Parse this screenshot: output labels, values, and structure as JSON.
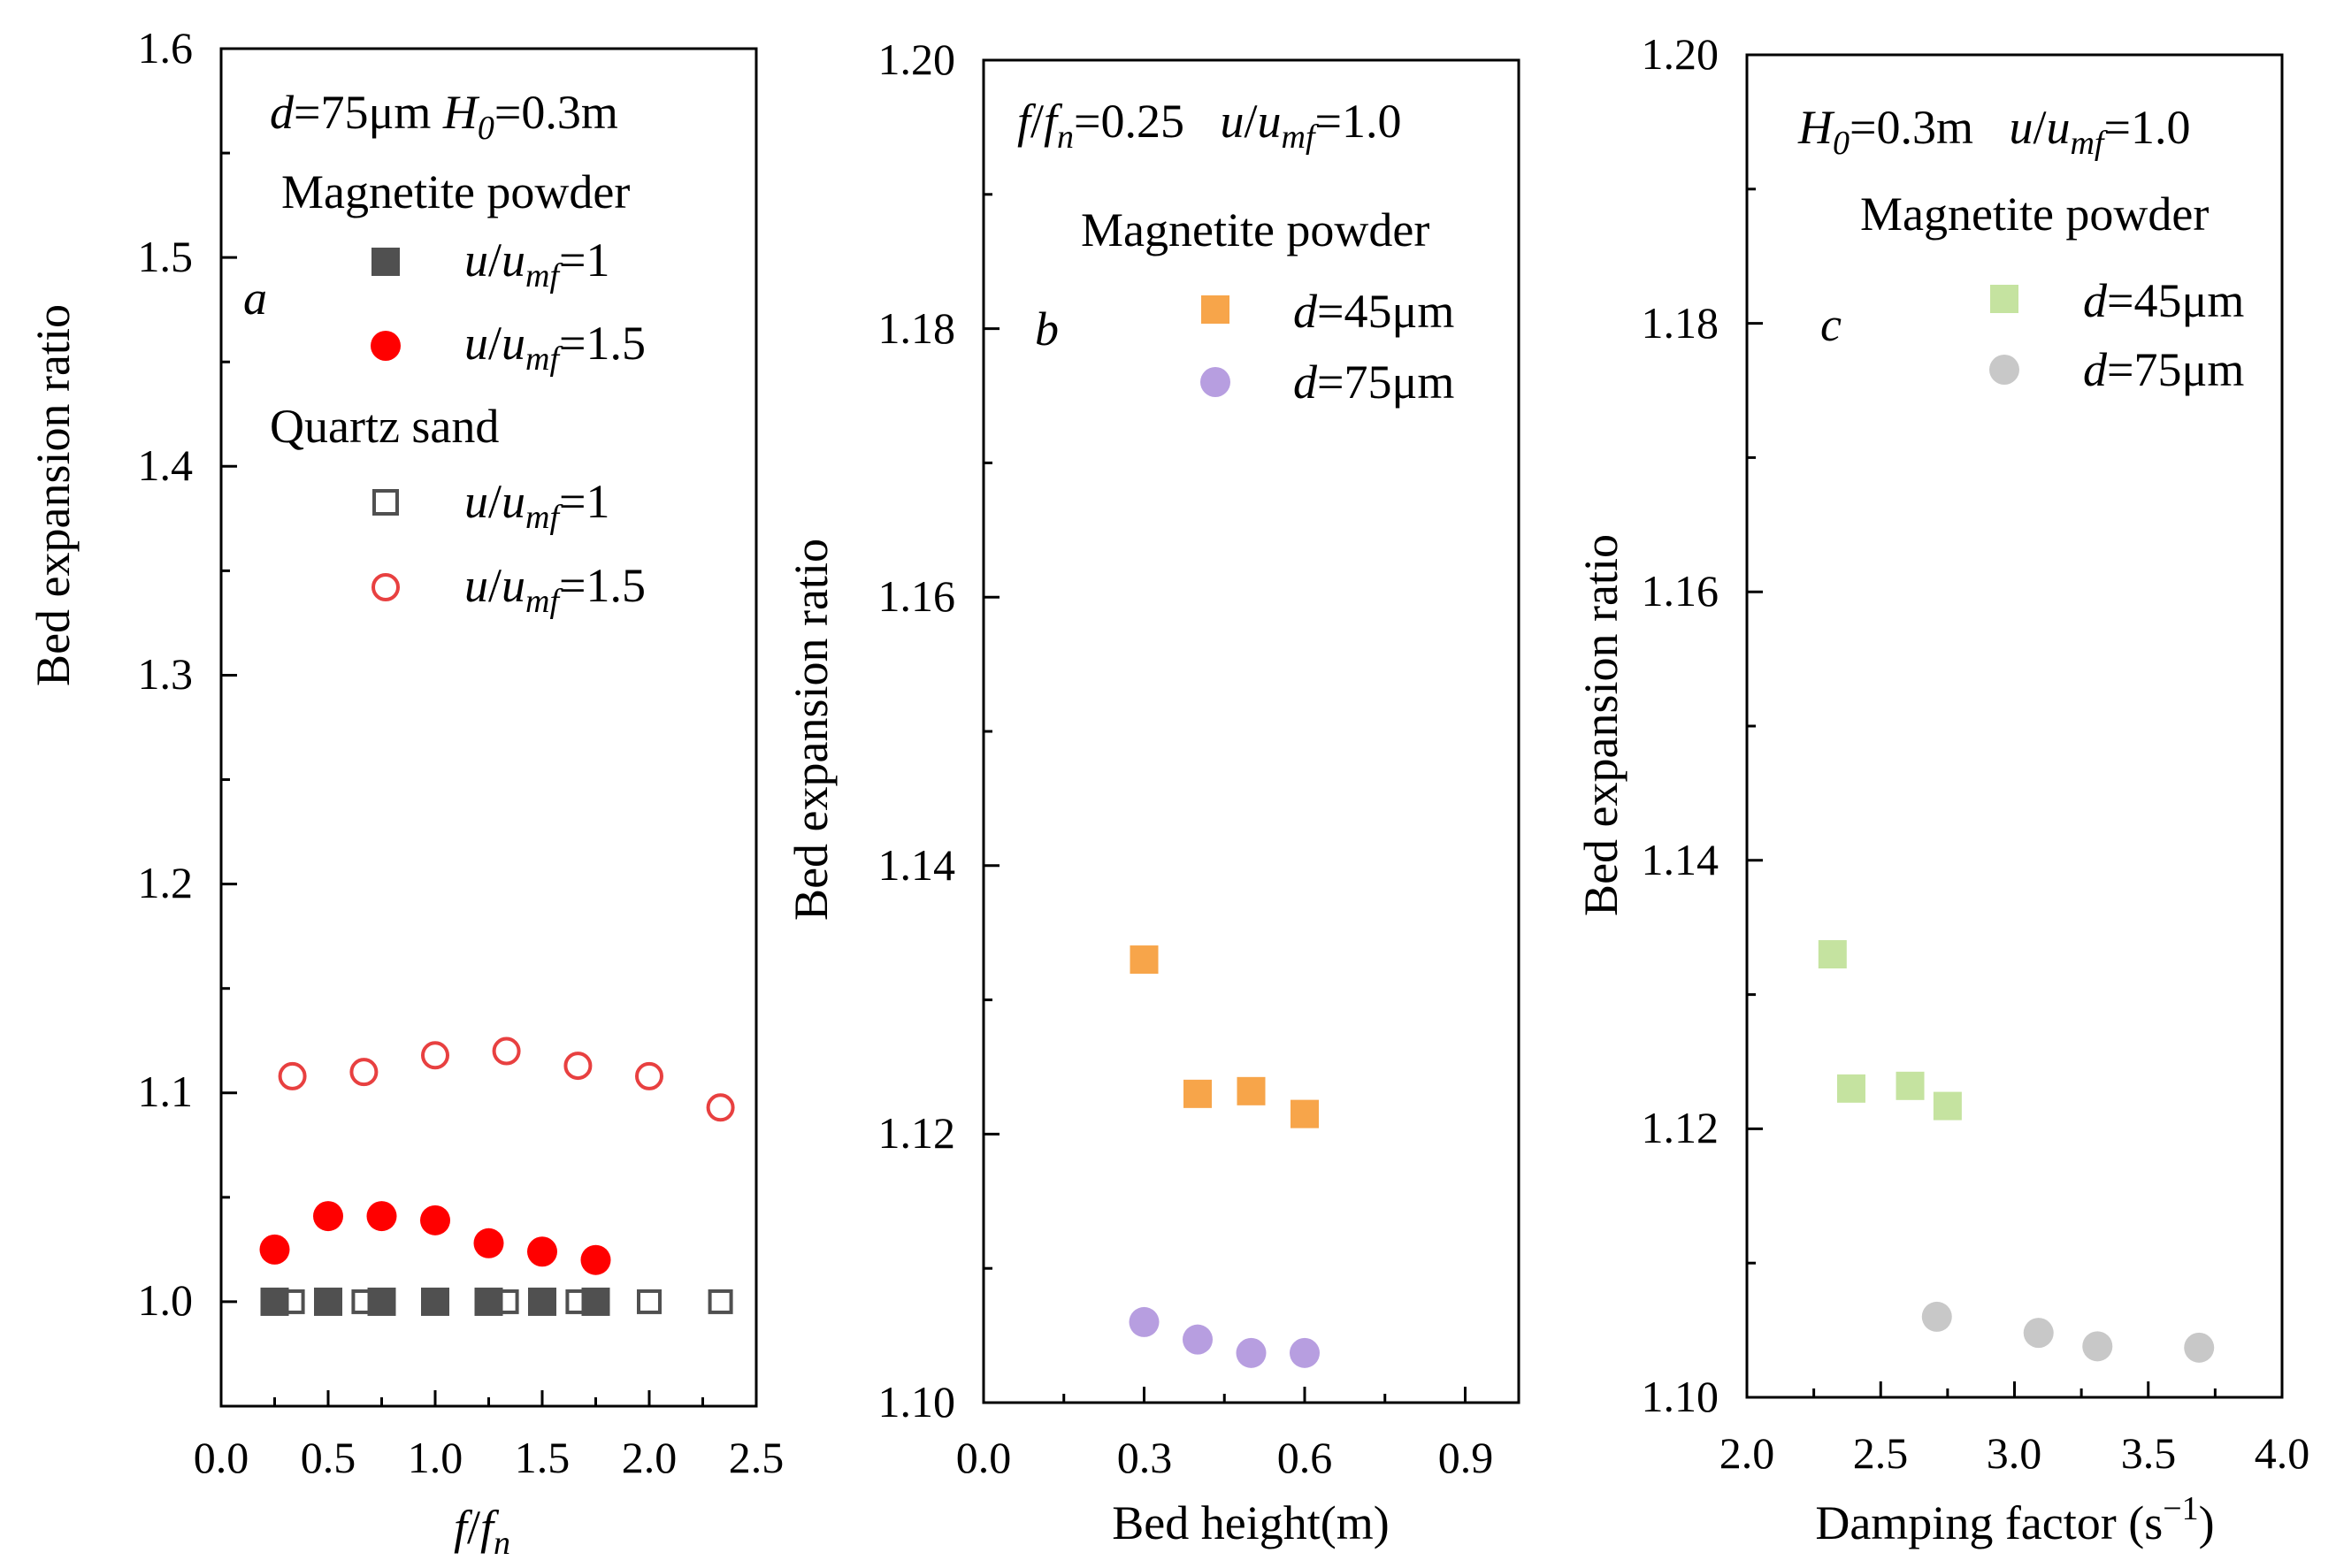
{
  "chart_data": [
    {
      "type": "scatter",
      "panel_letter": "a",
      "xlabel_parts": [
        "f",
        "/",
        "f",
        "n"
      ],
      "ylabel": "Bed expansion ratio",
      "xlim": [
        0,
        2.5
      ],
      "ylim": [
        0.95,
        1.6
      ],
      "xticks": [
        0.0,
        0.5,
        1.0,
        1.5,
        2.0,
        2.5
      ],
      "xtick_labels": [
        "0.0",
        "0.5",
        "1.0",
        "1.5",
        "2.0",
        "2.5"
      ],
      "yticks": [
        1.0,
        1.1,
        1.2,
        1.3,
        1.4,
        1.5,
        1.6
      ],
      "ytick_labels": [
        "1.0",
        "1.1",
        "1.2",
        "1.3",
        "1.4",
        "1.5",
        "1.6"
      ],
      "conditions_text": [
        "d",
        "=75μm ",
        "H",
        "0",
        "=0.3m"
      ],
      "legend_groups": [
        {
          "title": "Magnetite powder",
          "entries": [
            {
              "label": [
                "u",
                "/",
                "u",
                "mf",
                "=1"
              ],
              "marker": "square-filled",
              "color": "#505050"
            },
            {
              "label": [
                "u",
                "/",
                "u",
                "mf",
                "=1.5"
              ],
              "marker": "circle-filled",
              "color": "#ff0000"
            }
          ]
        },
        {
          "title": "Quartz sand",
          "entries": [
            {
              "label": [
                "u",
                "/",
                "u",
                "mf",
                "=1"
              ],
              "marker": "square-open",
              "color": "#505050"
            },
            {
              "label": [
                "u",
                "/",
                "u",
                "mf",
                "=1.5"
              ],
              "marker": "circle-open",
              "color": "#e84040"
            }
          ]
        }
      ],
      "series": [
        {
          "name": "Magnetite powder u/umf=1",
          "marker": "square-filled",
          "color": "#505050",
          "x": [
            0.25,
            0.5,
            0.75,
            1.0,
            1.25,
            1.5,
            1.75
          ],
          "y": [
            1.0,
            1.0,
            1.0,
            1.0,
            1.0,
            1.0,
            1.0
          ]
        },
        {
          "name": "Magnetite powder u/umf=1.5",
          "marker": "circle-filled",
          "color": "#ff0000",
          "x": [
            0.25,
            0.5,
            0.75,
            1.0,
            1.25,
            1.5,
            1.75
          ],
          "y": [
            1.025,
            1.041,
            1.041,
            1.039,
            1.028,
            1.024,
            1.02
          ]
        },
        {
          "name": "Quartz sand u/umf=1",
          "marker": "square-open",
          "color": "#505050",
          "x": [
            0.333,
            0.667,
            1.333,
            1.667,
            2.0,
            2.333
          ],
          "y": [
            1.0,
            1.0,
            1.0,
            1.0,
            1.0,
            1.0
          ]
        },
        {
          "name": "Quartz sand u/umf=1.5",
          "marker": "circle-open",
          "color": "#e84040",
          "x": [
            0.333,
            0.667,
            1.0,
            1.333,
            1.667,
            2.0,
            2.333
          ],
          "y": [
            1.108,
            1.11,
            1.118,
            1.12,
            1.113,
            1.108,
            1.093
          ]
        }
      ]
    },
    {
      "type": "scatter",
      "panel_letter": "b",
      "xlabel": "Bed height(m)",
      "ylabel": "Bed expansion ratio",
      "xlim": [
        0,
        1.0
      ],
      "ylim": [
        1.1,
        1.2
      ],
      "xticks": [
        0.0,
        0.3,
        0.6,
        0.9
      ],
      "xtick_labels": [
        "0.0",
        "0.3",
        "0.6",
        "0.9"
      ],
      "yticks": [
        1.1,
        1.12,
        1.14,
        1.16,
        1.18,
        1.2
      ],
      "ytick_labels": [
        "1.10",
        "1.12",
        "1.14",
        "1.16",
        "1.18",
        "1.20"
      ],
      "conditions_text": [
        "f",
        "/",
        "f",
        "n",
        "=0.25   ",
        "u",
        "/",
        "u",
        "mf",
        "=1.0"
      ],
      "legend_groups": [
        {
          "title": "Magnetite powder",
          "entries": [
            {
              "label": [
                "d",
                "=45μm"
              ],
              "marker": "square-filled",
              "color": "#f7a54a"
            },
            {
              "label": [
                "d",
                "=75μm"
              ],
              "marker": "circle-filled",
              "color": "#b79ee0"
            }
          ]
        }
      ],
      "series": [
        {
          "name": "d=45μm",
          "marker": "square-filled",
          "color": "#f7a54a",
          "x": [
            0.3,
            0.4,
            0.5,
            0.6
          ],
          "y": [
            1.133,
            1.123,
            1.1232,
            1.1215
          ]
        },
        {
          "name": "d=75μm",
          "marker": "circle-filled",
          "color": "#b79ee0",
          "x": [
            0.3,
            0.4,
            0.5,
            0.6
          ],
          "y": [
            1.106,
            1.1047,
            1.1037,
            1.1037
          ]
        }
      ]
    },
    {
      "type": "scatter",
      "panel_letter": "c",
      "xlabel_parts": [
        "Damping factor (s",
        "−1",
        ")"
      ],
      "ylabel": "Bed expansion ratio",
      "xlim": [
        2.0,
        4.0
      ],
      "ylim": [
        1.1,
        1.2
      ],
      "xticks": [
        2.0,
        2.5,
        3.0,
        3.5,
        4.0
      ],
      "xtick_labels": [
        "2.0",
        "2.5",
        "3.0",
        "3.5",
        "4.0"
      ],
      "yticks": [
        1.1,
        1.12,
        1.14,
        1.16,
        1.18,
        1.2
      ],
      "ytick_labels": [
        "1.10",
        "1.12",
        "1.14",
        "1.16",
        "1.18",
        "1.20"
      ],
      "conditions_text": [
        "H",
        "0",
        "=0.3m   ",
        "u",
        "/",
        "u",
        "mf",
        "=1.0"
      ],
      "legend_groups": [
        {
          "title": "Magnetite powder",
          "entries": [
            {
              "label": [
                "d",
                "=45μm"
              ],
              "marker": "square-filled",
              "color": "#c5e3a0"
            },
            {
              "label": [
                "d",
                "=75μm"
              ],
              "marker": "circle-filled",
              "color": "#c8c8c8"
            }
          ]
        }
      ],
      "series": [
        {
          "name": "d=45μm",
          "marker": "square-filled",
          "color": "#c5e3a0",
          "x": [
            2.32,
            2.39,
            2.61,
            2.75
          ],
          "y": [
            1.133,
            1.123,
            1.1232,
            1.1217
          ]
        },
        {
          "name": "d=75μm",
          "marker": "circle-filled",
          "color": "#c8c8c8",
          "x": [
            2.71,
            3.09,
            3.31,
            3.69
          ],
          "y": [
            1.106,
            1.1048,
            1.1038,
            1.1037
          ]
        }
      ]
    }
  ]
}
